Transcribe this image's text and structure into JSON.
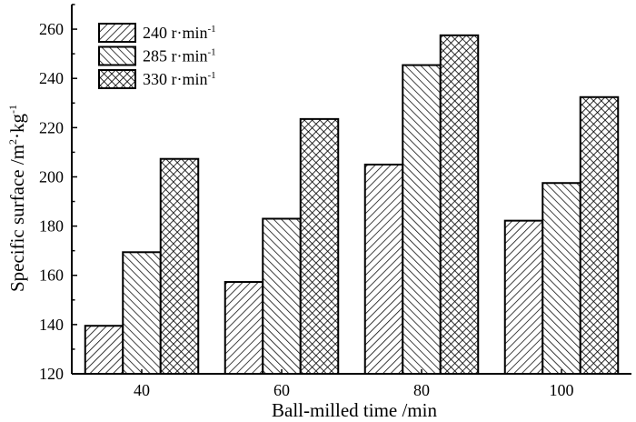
{
  "chart_data": {
    "type": "bar",
    "title": "",
    "xlabel": "Ball-milled time /min",
    "ylabel_parts": {
      "main": "Specific surface /m",
      "sup1": "2",
      "mid": "·kg",
      "sup2": "-1"
    },
    "categories": [
      "40",
      "60",
      "80",
      "100"
    ],
    "xlim": [
      30,
      110
    ],
    "ylim": [
      120,
      270
    ],
    "yticks": [
      "120",
      "140",
      "160",
      "180",
      "200",
      "220",
      "240",
      "260"
    ],
    "grid": false,
    "legend_placement": "top-left",
    "series": [
      {
        "name": "240 r·min",
        "sup": "-1",
        "pattern": "forward-diagonal",
        "values": [
          139.5,
          157.3,
          205,
          182.2
        ]
      },
      {
        "name": "285 r·min",
        "sup": "-1",
        "pattern": "back-diagonal",
        "values": [
          169.4,
          183,
          245.4,
          197.5
        ]
      },
      {
        "name": "330 r·min",
        "sup": "-1",
        "pattern": "crosshatch",
        "values": [
          207.3,
          223.5,
          257.5,
          232.4
        ]
      }
    ],
    "colors": {
      "stroke": "#000000",
      "fill": "#ffffff"
    }
  }
}
